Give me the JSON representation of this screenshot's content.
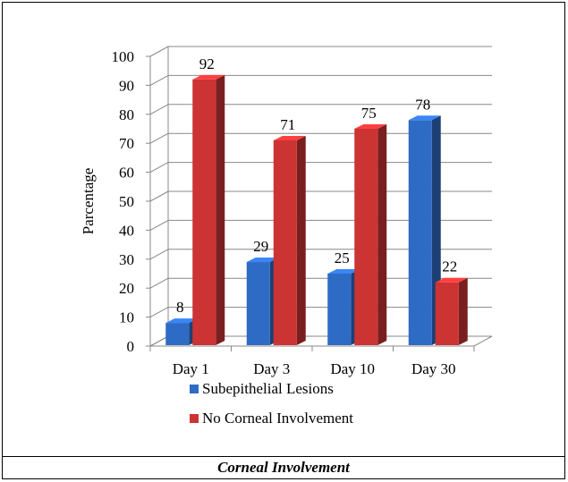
{
  "caption": "Corneal Involvement",
  "chart_data": {
    "type": "bar",
    "categories": [
      "Day 1",
      "Day 3",
      "Day 10",
      "Day 30"
    ],
    "series": [
      {
        "name": "Subepithelial Lesions",
        "values": [
          8,
          29,
          25,
          78
        ],
        "color": "#2e6bc4"
      },
      {
        "name": "No Corneal Involvement",
        "values": [
          92,
          71,
          75,
          22
        ],
        "color": "#cc3333"
      }
    ],
    "ylabel": "Parcentage",
    "xlabel": "",
    "ylim": [
      0,
      100
    ],
    "yticks": [
      0,
      10,
      20,
      30,
      40,
      50,
      60,
      70,
      80,
      90,
      100
    ],
    "grid": true,
    "legend": "bottom",
    "three_d": true
  }
}
